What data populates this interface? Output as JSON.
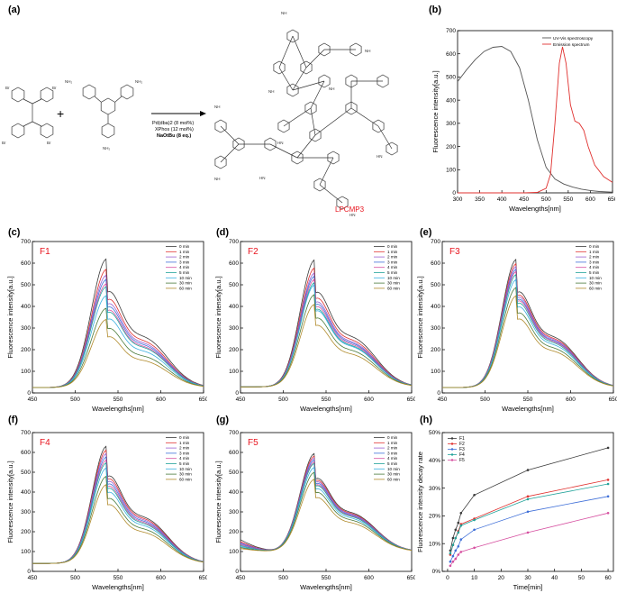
{
  "panels": {
    "a": "(a)",
    "b": "(b)",
    "c": "(c)",
    "d": "(d)",
    "e": "(e)",
    "f": "(f)",
    "g": "(g)",
    "h": "(h)"
  },
  "scheme": {
    "plus_sign": "+",
    "reagent_line1": "Pd(dba)2 (8 mol%)",
    "reagent_line2": "XPhos (12 mol%)",
    "reagent_line3": "NaOtBu (8 eq.)",
    "product_label": "LPCMP3",
    "atom_br": "Br",
    "atom_nh2": "NH₂",
    "atom_nh": "NH",
    "atom_hn": "HN"
  },
  "colors": {
    "red_label": "#e8141e",
    "series": [
      "#3a3a3a",
      "#e0312f",
      "#9a5fd0",
      "#3f6fd8",
      "#d64fa0",
      "#22a39a",
      "#3ab0e0",
      "#4a7a3a",
      "#b08a2a"
    ]
  },
  "chart_data": [
    {
      "id": "b",
      "type": "line",
      "xlabel": "Wavelengths[nm]",
      "ylabel": "Fluorescence intensity[a.u.]",
      "xlim": [
        300,
        650
      ],
      "ylim": [
        0,
        700
      ],
      "xticks": [
        300,
        350,
        400,
        450,
        500,
        550,
        600,
        650
      ],
      "yticks": [
        0,
        100,
        200,
        300,
        400,
        500,
        600,
        700
      ],
      "legend": "top-right",
      "series": [
        {
          "name": "UV-Vis spectroscopy",
          "color": "#555555",
          "x": [
            300,
            320,
            340,
            360,
            380,
            400,
            420,
            440,
            460,
            480,
            500,
            520,
            540,
            560,
            580,
            600,
            620,
            650
          ],
          "y": [
            480,
            530,
            575,
            610,
            628,
            632,
            610,
            540,
            400,
            230,
            110,
            60,
            38,
            25,
            16,
            10,
            6,
            3
          ]
        },
        {
          "name": "Emission spectrum",
          "color": "#e0312f",
          "x": [
            300,
            450,
            480,
            500,
            510,
            520,
            530,
            537,
            545,
            555,
            565,
            575,
            585,
            595,
            610,
            630,
            650
          ],
          "y": [
            0,
            0,
            2,
            20,
            80,
            300,
            560,
            630,
            560,
            380,
            310,
            300,
            270,
            200,
            120,
            70,
            45
          ]
        }
      ]
    },
    {
      "id": "c",
      "type": "line",
      "label": "F1",
      "xlabel": "Wavelengths[nm]",
      "ylabel": "Fluorescence intensity[a.u.]",
      "xlim": [
        450,
        650
      ],
      "ylim": [
        0,
        700
      ],
      "xticks": [
        450,
        500,
        550,
        600,
        650
      ],
      "yticks": [
        0,
        100,
        200,
        300,
        400,
        500,
        600,
        700
      ],
      "legend": "top-right",
      "series_names": [
        "0 min",
        "1 min",
        "2 min",
        "3 min",
        "4 min",
        "5 min",
        "10 min",
        "30 min",
        "60 min"
      ],
      "base": 25,
      "peaks": [
        620,
        572,
        545,
        525,
        505,
        492,
        450,
        392,
        340
      ],
      "sigma_l": 18
    },
    {
      "id": "d",
      "type": "line",
      "label": "F2",
      "xlabel": "Wavelengths[nm]",
      "ylabel": "Fluorescence intensity[a.u.]",
      "xlim": [
        450,
        650
      ],
      "ylim": [
        0,
        700
      ],
      "xticks": [
        450,
        500,
        550,
        600,
        650
      ],
      "yticks": [
        0,
        100,
        200,
        300,
        400,
        500,
        600,
        700
      ],
      "legend": "top-right",
      "series_names": [
        "0 min",
        "1 min",
        "2 min",
        "3 min",
        "4 min",
        "5 min",
        "10 min",
        "30 min",
        "60 min"
      ],
      "base": 28,
      "peaks": [
        615,
        578,
        555,
        540,
        525,
        510,
        500,
        455,
        410
      ],
      "sigma_l": 17
    },
    {
      "id": "e",
      "type": "line",
      "label": "F3",
      "xlabel": "Wavelengths[nm]",
      "ylabel": "Fluorescence intensity[a.u.]",
      "xlim": [
        450,
        650
      ],
      "ylim": [
        0,
        700
      ],
      "xticks": [
        450,
        500,
        550,
        600,
        650
      ],
      "yticks": [
        0,
        100,
        200,
        300,
        400,
        500,
        600,
        700
      ],
      "legend": "top-right",
      "series_names": [
        "0 min",
        "1 min",
        "2 min",
        "3 min",
        "4 min",
        "5 min",
        "10 min",
        "30 min",
        "60 min"
      ],
      "base": 25,
      "peaks": [
        618,
        598,
        585,
        572,
        562,
        548,
        525,
        488,
        450
      ],
      "sigma_l": 17
    },
    {
      "id": "f",
      "type": "line",
      "label": "F4",
      "xlabel": "Wavelengths[nm]",
      "ylabel": "Fluorescence intensity[a.u.]",
      "xlim": [
        450,
        650
      ],
      "ylim": [
        0,
        700
      ],
      "xticks": [
        450,
        500,
        550,
        600,
        650
      ],
      "yticks": [
        0,
        100,
        200,
        300,
        400,
        500,
        600,
        700
      ],
      "legend": "top-right",
      "series_names": [
        "0 min",
        "1 min",
        "2 min",
        "3 min",
        "4 min",
        "5 min",
        "10 min",
        "30 min",
        "60 min"
      ],
      "base": 40,
      "peaks": [
        632,
        612,
        595,
        578,
        562,
        548,
        522,
        480,
        438
      ],
      "sigma_l": 17
    },
    {
      "id": "g",
      "type": "line",
      "label": "F5",
      "xlabel": "Wavelengths[nm]",
      "ylabel": "Fluorescence intensity[a.u.]",
      "xlim": [
        450,
        650
      ],
      "ylim": [
        0,
        700
      ],
      "xticks": [
        450,
        500,
        550,
        600,
        650
      ],
      "yticks": [
        0,
        100,
        200,
        300,
        400,
        500,
        600,
        700
      ],
      "legend": "top-right",
      "series_names": [
        "0 min",
        "1 min",
        "2 min",
        "3 min",
        "4 min",
        "5 min",
        "10 min",
        "30 min",
        "60 min"
      ],
      "base": 100,
      "peaks": [
        595,
        582,
        572,
        562,
        552,
        545,
        525,
        500,
        465
      ],
      "sigma_l": 17,
      "start_values": [
        160,
        150,
        145,
        140,
        135,
        130,
        125,
        120,
        115
      ]
    },
    {
      "id": "h",
      "type": "line",
      "xlabel": "Time[min]",
      "ylabel": "Fluorescence intensity decay rate",
      "xlim": [
        -2,
        62
      ],
      "ylim": [
        0,
        50
      ],
      "xticks": [
        0,
        10,
        20,
        30,
        40,
        50,
        60
      ],
      "yticks": [
        0,
        10,
        20,
        30,
        40,
        50
      ],
      "ytick_labels": [
        "0%",
        "10%",
        "20%",
        "30%",
        "40%",
        "50%"
      ],
      "legend": "top-left",
      "series": [
        {
          "name": "F1",
          "color": "#3a3a3a",
          "x": [
            1,
            2,
            3,
            4,
            5,
            10,
            30,
            60
          ],
          "y": [
            7.5,
            12,
            15,
            17.5,
            21,
            27.5,
            36.5,
            44.5
          ]
        },
        {
          "name": "F2",
          "color": "#e0312f",
          "x": [
            1,
            2,
            3,
            4,
            5,
            10,
            30,
            60
          ],
          "y": [
            6,
            9.5,
            12,
            14.5,
            17,
            19,
            27,
            33
          ]
        },
        {
          "name": "F3",
          "color": "#3f6fd8",
          "x": [
            1,
            2,
            3,
            4,
            5,
            10,
            30,
            60
          ],
          "y": [
            3.5,
            5.5,
            7.5,
            9,
            11.5,
            15,
            21.5,
            27
          ]
        },
        {
          "name": "F4",
          "color": "#22a39a",
          "x": [
            1,
            2,
            3,
            4,
            5,
            10,
            30,
            60
          ],
          "y": [
            6.5,
            9.5,
            12,
            14,
            16.5,
            18.5,
            26,
            31.5
          ]
        },
        {
          "name": "F5",
          "color": "#d64fa0",
          "x": [
            1,
            2,
            3,
            4,
            5,
            10,
            30,
            60
          ],
          "y": [
            2,
            3.5,
            4.5,
            6,
            7,
            8.5,
            14,
            21
          ]
        }
      ]
    }
  ]
}
